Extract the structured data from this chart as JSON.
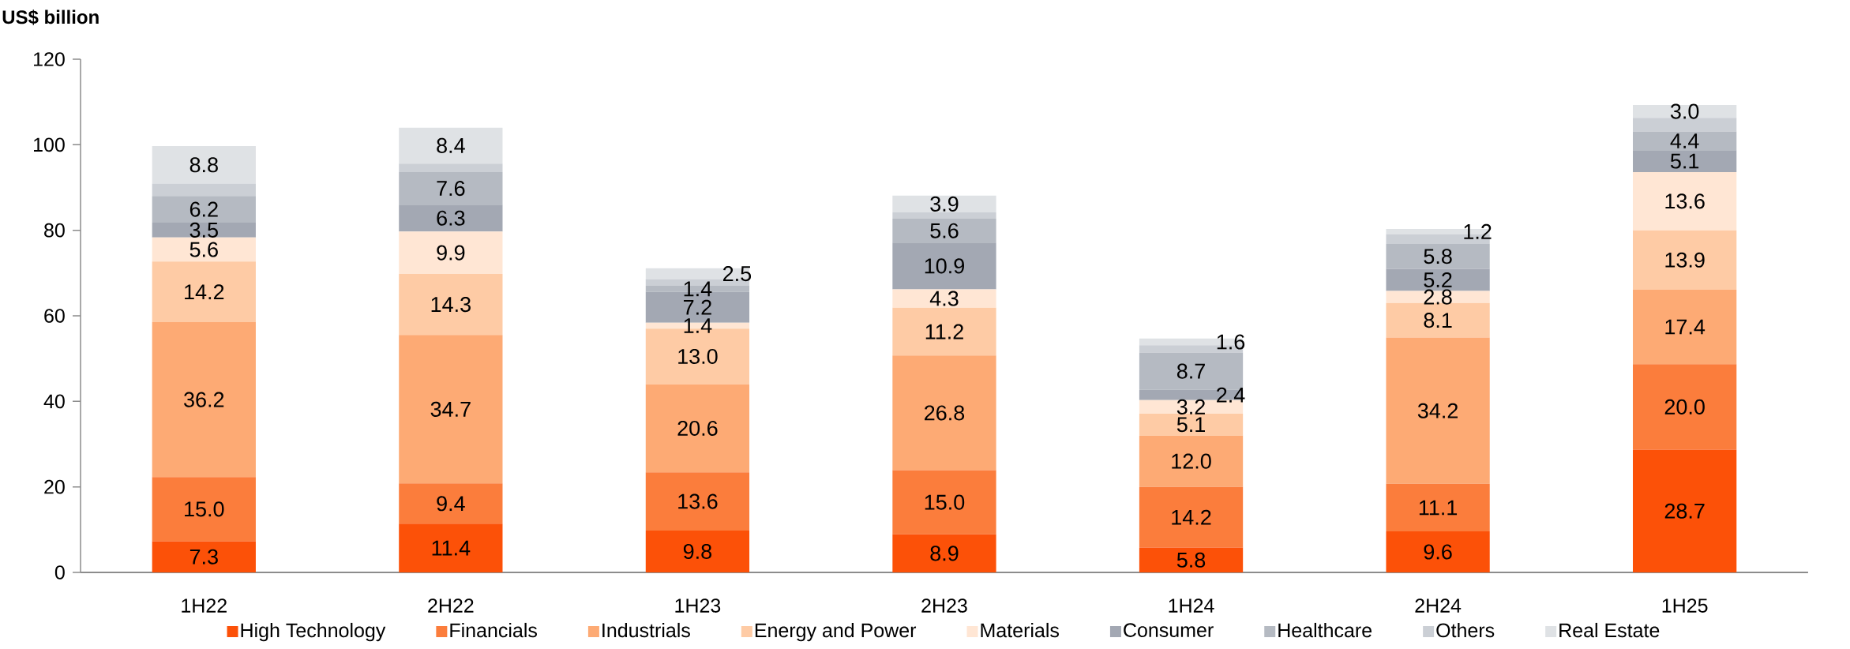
{
  "chart_data": {
    "type": "bar",
    "stacked": true,
    "ylabel": "US$ billion",
    "categories": [
      "1H22",
      "2H22",
      "1H23",
      "2H23",
      "1H24",
      "2H24",
      "1H25"
    ],
    "ylim": [
      0,
      120
    ],
    "yticks": [
      0,
      20,
      40,
      60,
      80,
      100,
      120
    ],
    "grid": false,
    "legend": "bottom",
    "series": [
      {
        "name": "High Technology",
        "color": "#fc5108",
        "values": [
          7.3,
          11.4,
          9.8,
          8.9,
          5.8,
          9.6,
          28.7
        ],
        "value_labels": [
          "7.3",
          "11.4",
          "9.8",
          "8.9",
          "5.8",
          "9.6",
          "28.7"
        ]
      },
      {
        "name": "Financials",
        "color": "#fb7d3c",
        "values": [
          15.0,
          9.4,
          13.6,
          15.0,
          14.2,
          11.1,
          20.0
        ],
        "value_labels": [
          "15.0",
          "9.4",
          "13.6",
          "15.0",
          "14.2",
          "11.1",
          "20.0"
        ]
      },
      {
        "name": "Industrials",
        "color": "#fdaa74",
        "values": [
          36.2,
          34.7,
          20.6,
          26.8,
          12.0,
          34.2,
          17.4
        ],
        "value_labels": [
          "36.2",
          "34.7",
          "20.6",
          "26.8",
          "12.0",
          "34.2",
          "17.4"
        ]
      },
      {
        "name": "Energy and Power",
        "color": "#fecba5",
        "values": [
          14.2,
          14.3,
          13.0,
          11.2,
          5.1,
          8.1,
          13.9
        ],
        "value_labels": [
          "14.2",
          "14.3",
          "13.0",
          "11.2",
          "5.1",
          "8.1",
          "13.9"
        ]
      },
      {
        "name": "Materials",
        "color": "#ffe6d4",
        "values": [
          5.6,
          9.9,
          1.4,
          4.3,
          3.2,
          2.8,
          13.6
        ],
        "value_labels": [
          "5.6",
          "9.9",
          "1.4",
          "4.3",
          "3.2",
          "2.8",
          "13.6"
        ]
      },
      {
        "name": "Consumer",
        "color": "#a3a8b3",
        "values": [
          3.5,
          6.3,
          7.2,
          10.9,
          2.4,
          5.2,
          5.1
        ],
        "value_labels": [
          "3.5",
          "6.3",
          "7.2",
          "10.9",
          "2.4",
          "5.2",
          "5.1"
        ]
      },
      {
        "name": "Healthcare",
        "color": "#b5bac2",
        "values": [
          6.2,
          7.6,
          1.4,
          5.6,
          8.7,
          5.8,
          4.4
        ],
        "value_labels": [
          "6.2",
          "7.6",
          "1.4",
          "5.6",
          "8.7",
          "5.8",
          "4.4"
        ]
      },
      {
        "name": "Others",
        "color": "#cbcfd5",
        "values": [
          2.9,
          2.0,
          1.6,
          1.5,
          1.7,
          2.3,
          3.2
        ],
        "value_labels": [
          null,
          null,
          null,
          null,
          null,
          null,
          null
        ]
      },
      {
        "name": "Real Estate",
        "color": "#dfe2e5",
        "values": [
          8.8,
          8.4,
          2.5,
          3.9,
          1.6,
          1.2,
          3.0
        ],
        "value_labels": [
          "8.8",
          "8.4",
          "2.5",
          "3.9",
          "1.6",
          "1.2",
          "3.0"
        ]
      }
    ]
  }
}
